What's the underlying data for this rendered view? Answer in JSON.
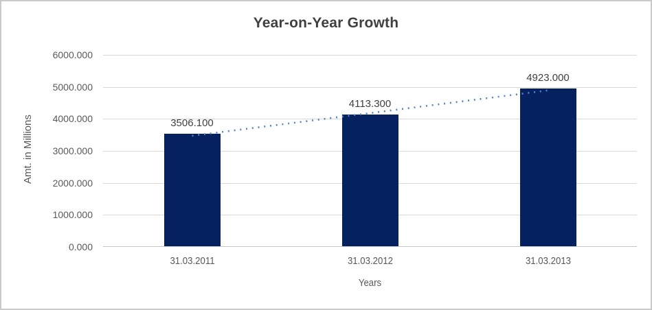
{
  "chart_data": {
    "type": "bar",
    "title": "Year-on-Year Growth",
    "xlabel": "Years",
    "ylabel": "Amt. in Millions",
    "categories": [
      "31.03.2011",
      "31.03.2012",
      "31.03.2013"
    ],
    "values": [
      3506.1,
      4113.3,
      4923.0
    ],
    "data_labels": [
      "3506.100",
      "4113.300",
      "4923.000"
    ],
    "ylim": [
      0,
      6000
    ],
    "ytick_step": 1000,
    "yticks": [
      "6000.000",
      "5000.000",
      "4000.000",
      "3000.000",
      "2000.000",
      "1000.000",
      "0.000"
    ],
    "grid": true,
    "legend": "none",
    "trendline": {
      "type": "linear",
      "style": "dotted"
    },
    "colors": {
      "bar": "#06215f",
      "trendline": "#4f87c9",
      "gridline": "#d9d9d9",
      "axis_line": "#c6c6c6",
      "title_text": "#404040",
      "tick_text": "#595959",
      "data_label_text": "#404040",
      "border": "#c9c9c9",
      "background": "#ffffff"
    }
  }
}
